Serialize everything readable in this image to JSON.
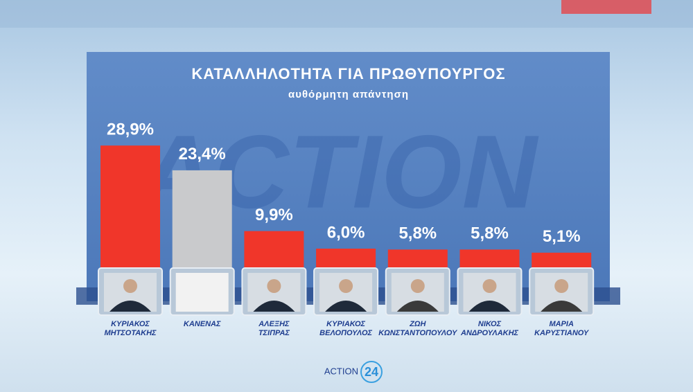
{
  "chart_data": {
    "type": "bar",
    "title": "ΚΑΤΑΛΛΗΛΟΤΗΤΑ ΓΙΑ ΠΡΩΘΥΠΟΥΡΓΟΣ",
    "subtitle": "αυθόρμητη απάντηση",
    "categories": [
      "ΚΥΡΙΑΚΟΣ\nΜΗΤΣΟΤΑΚΗΣ",
      "ΚΑΝΕΝΑΣ",
      "ΑΛΕΞΗΣ\nΤΣΙΠΡΑΣ",
      "ΚΥΡΙΑΚΟΣ\nΒΕΛΟΠΟΥΛΟΣ",
      "ΖΩΗ\nΚΩΝΣΤΑΝΤΟΠΟΥΛΟΥ",
      "ΝΙΚΟΣ\nΑΝΔΡΟΥΛΑΚΗΣ",
      "ΜΑΡΙΑ\nΚΑΡΥΣΤΙΑΝΟΥ"
    ],
    "values": [
      28.9,
      23.4,
      9.9,
      6.0,
      5.8,
      5.8,
      5.1
    ],
    "value_labels": [
      "28,9%",
      "23,4%",
      "9,9%",
      "6,0%",
      "5,8%",
      "5,8%",
      "5,1%"
    ],
    "colors": [
      "#f0362a",
      "#c9cacc",
      "#f0362a",
      "#f0362a",
      "#f0362a",
      "#f0362a",
      "#f0362a"
    ]
  },
  "logo": {
    "text": "ACTION",
    "number": "24"
  }
}
